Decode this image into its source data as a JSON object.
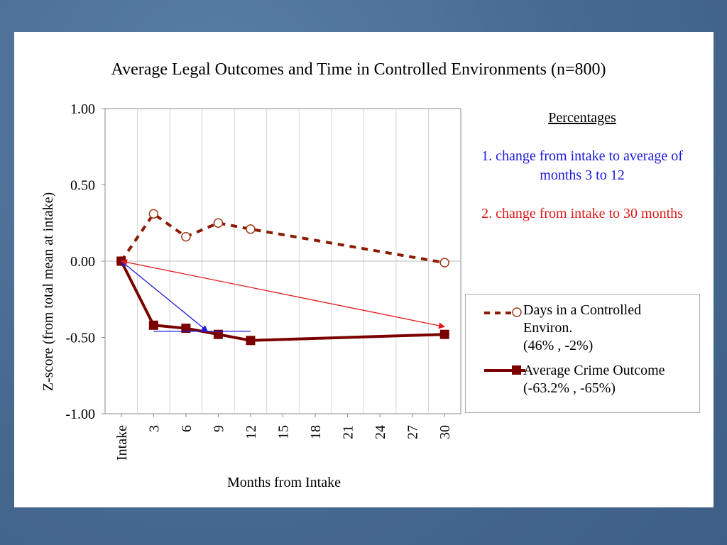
{
  "chart_data": {
    "type": "line",
    "title": "Average Legal Outcomes and Time in Controlled Environments (n=800)",
    "xlabel": "Months from Intake",
    "ylabel": "Z-score (from total mean at intake)",
    "ylim": [
      -1.0,
      1.0
    ],
    "y_ticks": [
      "1.00",
      "0.50",
      "0.00",
      "-0.50",
      "-1.00"
    ],
    "categories": [
      "Intake",
      "3",
      "6",
      "9",
      "12",
      "15",
      "18",
      "21",
      "24",
      "27",
      "30"
    ],
    "grid": "vertical",
    "legend_position": "right",
    "series": [
      {
        "name": "Days in a Controlled Environ.",
        "legend_lines": [
          "Days in a Controlled",
          "Environ.",
          "(46% , -2%)"
        ],
        "style": "dashed-open-circle",
        "color": "#8b1a00",
        "x": [
          0,
          3,
          6,
          9,
          12,
          30
        ],
        "values": [
          0.0,
          0.31,
          0.16,
          0.25,
          0.21,
          -0.01
        ]
      },
      {
        "name": "Average Crime Outcome",
        "legend_lines": [
          "Average Crime Outcome",
          "(-63.2% , -65%)"
        ],
        "style": "solid-square",
        "color": "#7a0000",
        "x": [
          0,
          3,
          6,
          9,
          12,
          30
        ],
        "values": [
          0.0,
          -0.42,
          -0.44,
          -0.48,
          -0.52,
          -0.48
        ]
      }
    ],
    "annotations": {
      "blue_color": "#1a1ae0",
      "red_color": "#e01a1a",
      "blue_arrow_from": [
        0,
        0.0
      ],
      "blue_arrow_to": [
        8,
        -0.46
      ],
      "blue_line_y": -0.46,
      "blue_line_x": [
        3,
        12
      ],
      "red_arrow_from": [
        0,
        0.0
      ],
      "red_arrow_to": [
        30,
        -0.43
      ]
    }
  },
  "notes": {
    "header": "Percentages",
    "note1": "1. change from intake to average of months 3 to 12",
    "note2": "2. change from intake to 30 months"
  }
}
